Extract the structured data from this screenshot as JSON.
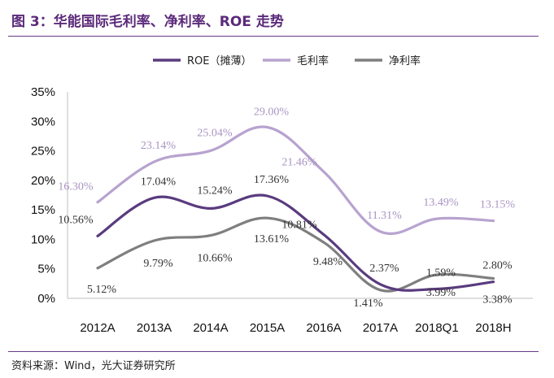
{
  "figure": {
    "title": "图 3：华能国际毛利率、净利率、ROE 走势",
    "source": "资料来源：Wind，光大证券研究所"
  },
  "colors": {
    "roe": "#5a3b7e",
    "gross": "#b7a3cf",
    "net": "#7f7f7f",
    "accent": "#5b2a7a"
  },
  "chart_data": {
    "type": "line",
    "categories": [
      "2012A",
      "2013A",
      "2014A",
      "2015A",
      "2016A",
      "2017A",
      "2018Q1",
      "2018H"
    ],
    "ylim": [
      0,
      35
    ],
    "yticks": [
      "0%",
      "5%",
      "10%",
      "15%",
      "20%",
      "25%",
      "30%",
      "35%"
    ],
    "grid": false,
    "legend_position": "top",
    "series": [
      {
        "name": "ROE（摊薄）",
        "key": "roe",
        "values": [
          10.56,
          17.04,
          15.24,
          17.36,
          10.81,
          2.37,
          1.59,
          2.8
        ],
        "labels": [
          "10.56%",
          "17.04%",
          "15.24%",
          "17.36%",
          "10.81%",
          "2.37%",
          "1.59%",
          "2.80%"
        ]
      },
      {
        "name": "毛利率",
        "key": "gross",
        "values": [
          16.3,
          23.14,
          25.04,
          29.0,
          21.46,
          11.31,
          13.49,
          13.15
        ],
        "labels": [
          "16.30%",
          "23.14%",
          "25.04%",
          "29.00%",
          "21.46%",
          "11.31%",
          "13.49%",
          "13.15%"
        ]
      },
      {
        "name": "净利率",
        "key": "net",
        "values": [
          5.12,
          9.79,
          10.66,
          13.61,
          9.48,
          1.41,
          3.99,
          3.38
        ],
        "labels": [
          "5.12%",
          "9.79%",
          "10.66%",
          "13.61%",
          "9.48%",
          "1.41%",
          "3.99%",
          "3.38%"
        ]
      }
    ]
  }
}
